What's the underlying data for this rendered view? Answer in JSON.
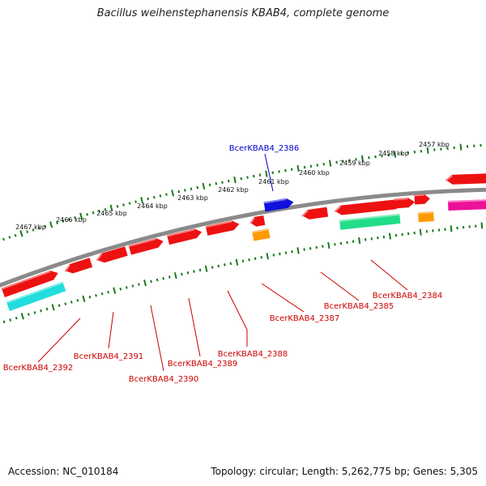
{
  "title": "Bacillus weihenstephanensis KBAB4, complete genome",
  "footer": {
    "accession": "Accession: NC_010184",
    "summary": "Topology: circular; Length: 5,262,775 bp; Genes: 5,305"
  },
  "colors": {
    "backbone": "#8a8a8a",
    "tick": "#1a7a1a",
    "gene_red": "#ee1111",
    "gene_blue": "#1111dd",
    "gene_orange": "#ff9900",
    "gene_teal": "#22dd88",
    "gene_cyan": "#22dddd",
    "gene_magenta": "#ee1199",
    "label_red": "#cc0000",
    "label_blue": "#0000cc"
  },
  "kbp_labels": [
    "2457 kbp",
    "2458 kbp",
    "2459 kbp",
    "2460 kbp",
    "2461 kbp",
    "2462 kbp",
    "2463 kbp",
    "2464 kbp",
    "2465 kbp",
    "2466 kbp",
    "2467 kbp"
  ],
  "gene_labels": [
    {
      "text": "BcerKBAB4_2386",
      "color": "blue"
    },
    {
      "text": "BcerKBAB4_2384",
      "color": "red"
    },
    {
      "text": "BcerKBAB4_2385",
      "color": "red"
    },
    {
      "text": "BcerKBAB4_2387",
      "color": "red"
    },
    {
      "text": "BcerKBAB4_2388",
      "color": "red"
    },
    {
      "text": "BcerKBAB4_2389",
      "color": "red"
    },
    {
      "text": "BcerKBAB4_2390",
      "color": "red"
    },
    {
      "text": "BcerKBAB4_2391",
      "color": "red"
    },
    {
      "text": "BcerKBAB4_2392",
      "color": "red"
    }
  ]
}
